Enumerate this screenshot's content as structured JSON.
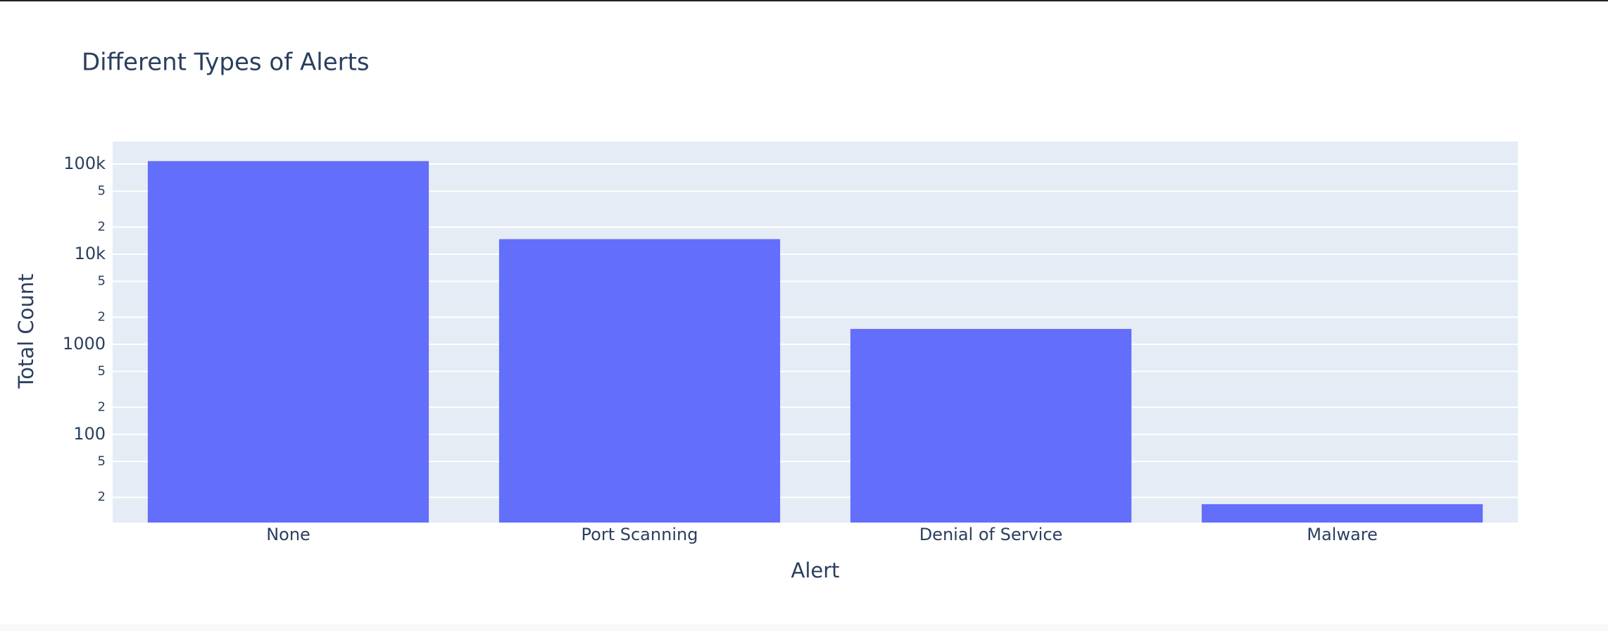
{
  "chart_data": {
    "type": "bar",
    "title": "Different Types of Alerts",
    "x_label": "Alert",
    "y_label": "Total Count",
    "categories": [
      "None",
      "Port Scanning",
      "Denial of Service",
      "Malware"
    ],
    "values": [
      108000,
      14700,
      1480,
      16.8
    ],
    "color": "#636efa",
    "log_y": true,
    "grid": true,
    "ylim": [
      10.5,
      178000
    ],
    "yticks": [
      {
        "value": 20,
        "label": "2"
      },
      {
        "value": 50,
        "label": "5"
      },
      100,
      {
        "value": 200,
        "label": "2"
      },
      {
        "value": 500,
        "label": "5"
      },
      1000,
      {
        "value": 2000,
        "label": "2"
      },
      {
        "value": 5000,
        "label": "5"
      },
      {
        "value": 10000,
        "label": "10k"
      },
      {
        "value": 20000,
        "label": "2"
      },
      {
        "value": 50000,
        "label": "5"
      },
      {
        "value": 100000,
        "label": "100k"
      }
    ]
  }
}
